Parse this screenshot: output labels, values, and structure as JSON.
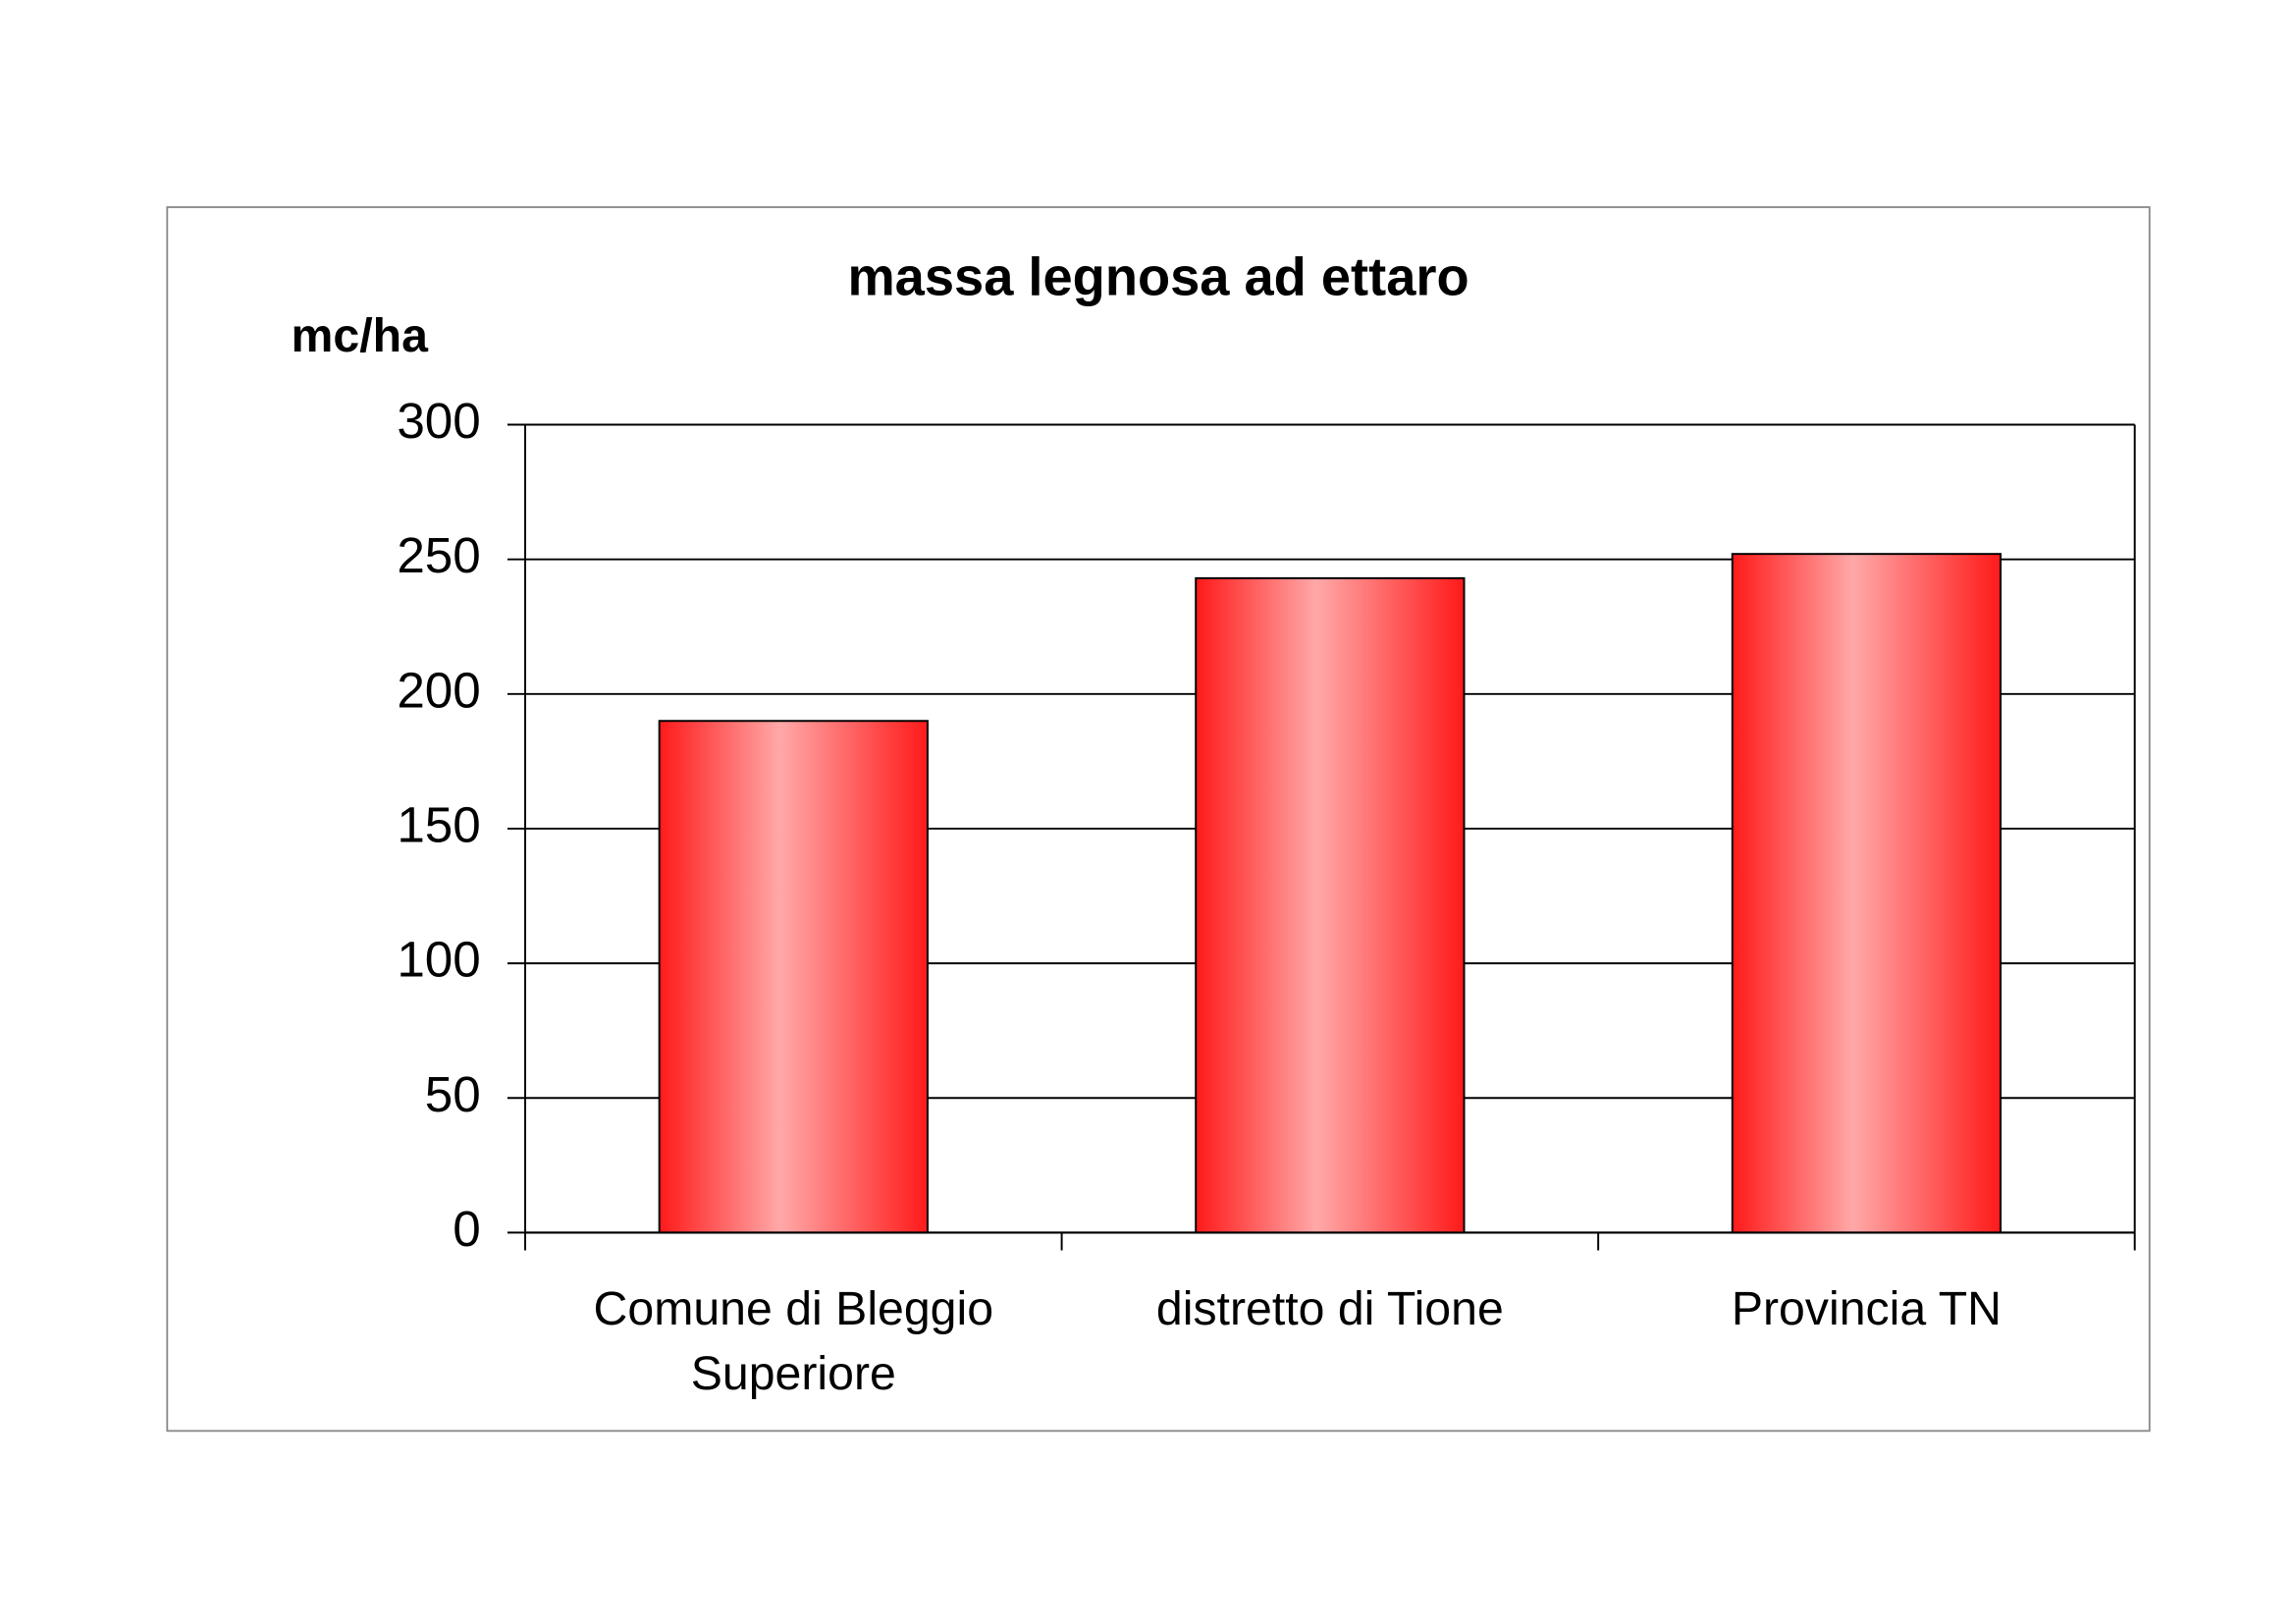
{
  "chart_data": {
    "type": "bar",
    "title": "massa legnosa ad ettaro",
    "y_label": "mc/ha",
    "categories": [
      "Comune di Bleggio Superiore",
      "distretto di Tione",
      "Provincia TN"
    ],
    "values": [
      190,
      243,
      252
    ],
    "color": "#ff1a1a",
    "ylim": [
      0,
      300
    ],
    "yticks": [
      0,
      50,
      100,
      150,
      200,
      250,
      300
    ],
    "grid": true
  }
}
